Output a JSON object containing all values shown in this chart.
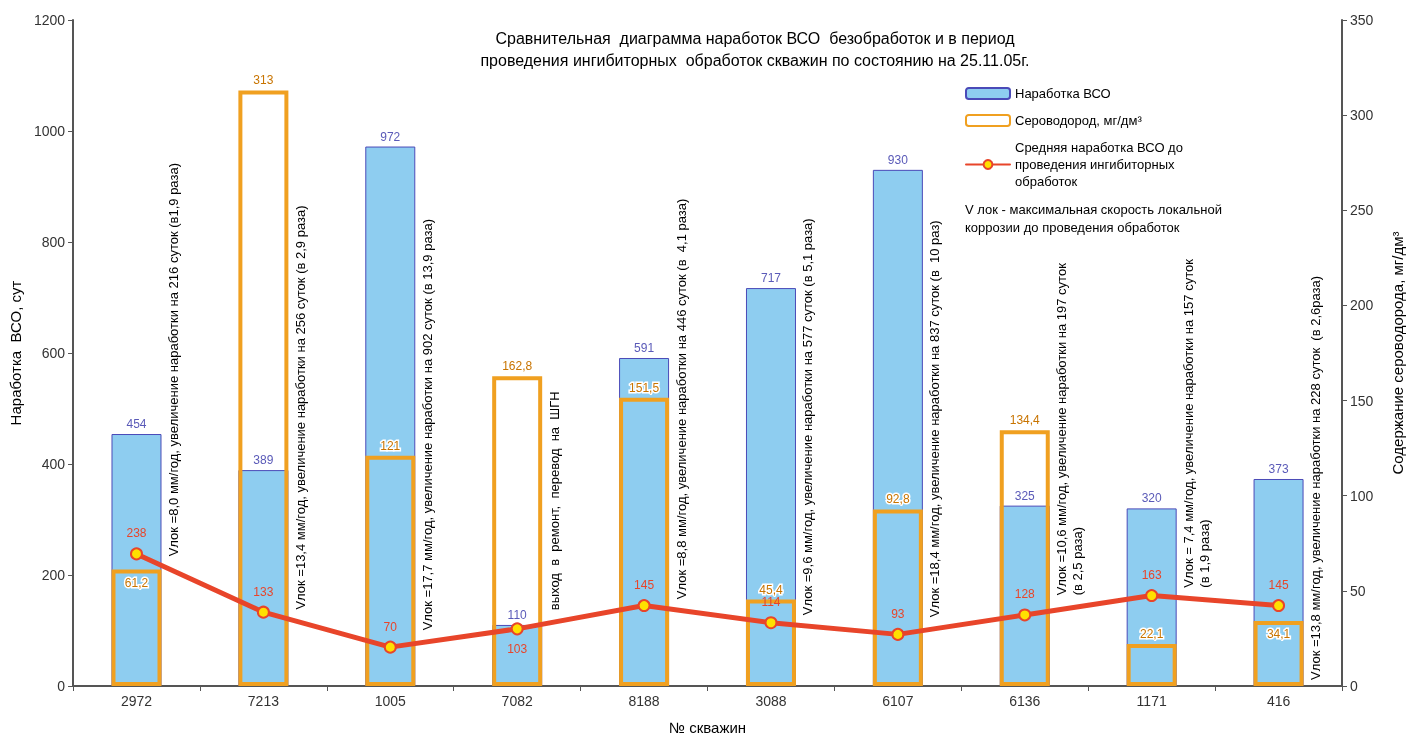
{
  "chart_data": {
    "type": "bar",
    "title": "Сравнительная  диаграмма наработок ВСО  безобработок и в период\nпроведения ингибиторных  обработок скважин по состоянию на 25.11.05г.",
    "xlabel": "№ скважин",
    "ylabel": "Наработка  ВСО, сут",
    "y2label": "Содержание сероводорода, мг/дм³",
    "categories": [
      "2972",
      "7213",
      "1005",
      "7082",
      "8188",
      "3088",
      "6107",
      "6136",
      "1171",
      "416"
    ],
    "series": [
      {
        "name": "Наработка ВСО",
        "color": "#8ecdf0",
        "values": [
          454,
          389,
          972,
          110,
          591,
          717,
          930,
          325,
          320,
          373
        ],
        "value_labels": [
          "454",
          "389",
          "972",
          "110",
          "591",
          "717",
          "930",
          "325",
          "320",
          "373"
        ]
      },
      {
        "name": "Сероводород, мг/дм³",
        "axis": "y2",
        "color": "#f0a020",
        "values": [
          61.2,
          313,
          121,
          162.8,
          151.5,
          45.4,
          92.8,
          134.4,
          22.1,
          34.1
        ],
        "value_labels": [
          "61,2",
          "313",
          "121",
          "162,8",
          "151,5",
          "45,4",
          "92,8",
          "134,4",
          "22,1",
          "34,1"
        ]
      },
      {
        "name": "Средняя наработка ВСО до проведения ингибиторных обработок",
        "type": "line",
        "color": "#e8452a",
        "values": [
          238,
          133,
          70,
          103,
          145,
          114,
          93,
          128,
          163,
          145
        ],
        "value_labels": [
          "238",
          "133",
          "70",
          "103",
          "145",
          "114",
          "93",
          "128",
          "163",
          "145"
        ]
      }
    ],
    "ylim": [
      0,
      1200
    ],
    "yticks": [
      0,
      200,
      400,
      600,
      800,
      1000,
      1200
    ],
    "y2lim": [
      0,
      350
    ],
    "y2ticks": [
      0,
      50,
      100,
      150,
      200,
      250,
      300,
      350
    ],
    "grid": false,
    "legend": "top right",
    "marker": "circle",
    "line_style": "solid",
    "annotations": [
      "Vлок =8,0 мм/год, увеличение наработки на 216 суток (в1,9 раза)",
      "Vлок =13,4 мм/год, увеличение наработки на 256 суток (в 2,9 раза)",
      "Vлок =17,7 мм/год, увеличение наработки на 902 суток (в 13,9 раза)",
      "выход  в  ремонт,  перевод  на  ШГН",
      "Vлок =8,8 мм/год, увеличение наработки на 446 суток (в  4,1 раза)",
      "Vлок =9,6 мм/год, увеличение наработки на 577 суток (в 5,1 раза)",
      "Vлок =18,4 мм/год, увеличение наработки на 837 суток (в  10 раз)",
      "Vлок =10,6 мм/год, увеличение наработки на 197 суток\n(в 2,5 раза)",
      "Vлок = 7,4 мм/год, увеличение наработки на 157 суток\n(в 1,9 раза)",
      "Vлок =13,8 мм/год, увеличение наработки на 228 суток  (в 2,6раза)",
      "V лок - максимальная скорость локальной\nкоррозии до проведения обработок"
    ]
  }
}
